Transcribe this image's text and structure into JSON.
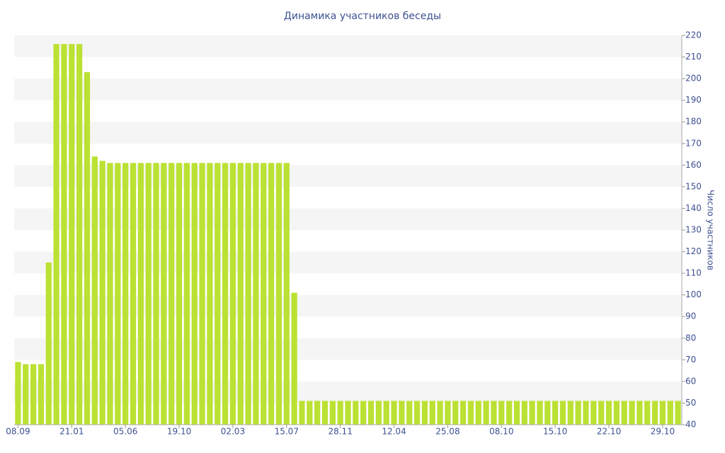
{
  "chart_data": {
    "type": "bar",
    "title": "Динамика участников беседы",
    "y_label": "Число участников",
    "categories": [
      "08.09",
      null,
      null,
      null,
      null,
      null,
      null,
      "21.01",
      null,
      null,
      null,
      null,
      null,
      null,
      "05.06",
      null,
      null,
      null,
      null,
      null,
      null,
      "19.10",
      null,
      null,
      null,
      null,
      null,
      null,
      "02.03",
      null,
      null,
      null,
      null,
      null,
      null,
      "15.07",
      null,
      null,
      null,
      null,
      null,
      null,
      "28.11",
      null,
      null,
      null,
      null,
      null,
      null,
      "12.04",
      null,
      null,
      null,
      null,
      null,
      null,
      "25.08",
      null,
      null,
      null,
      null,
      null,
      null,
      "08.10",
      null,
      null,
      null,
      null,
      null,
      null,
      "15.10",
      null,
      null,
      null,
      null,
      null,
      null,
      "22.10",
      null,
      null,
      null,
      null,
      null,
      null,
      "29.10",
      null,
      null
    ],
    "values": [
      69,
      68,
      68,
      68,
      115,
      216,
      216,
      216,
      216,
      203,
      164,
      162,
      161,
      161,
      161,
      161,
      161,
      161,
      161,
      161,
      161,
      161,
      161,
      161,
      161,
      161,
      161,
      161,
      161,
      161,
      161,
      161,
      161,
      161,
      161,
      161,
      101,
      51,
      51,
      51,
      51,
      51,
      51,
      51,
      51,
      51,
      51,
      51,
      51,
      51,
      51,
      51,
      51,
      51,
      51,
      51,
      51,
      51,
      51,
      51,
      51,
      51,
      51,
      51,
      51,
      51,
      51,
      51,
      51,
      51,
      51,
      51,
      51,
      51,
      51,
      51,
      51,
      51,
      51,
      51,
      51,
      51,
      51,
      51,
      51,
      51,
      51
    ],
    "color": "#bbe133",
    "ylim": [
      40,
      220
    ],
    "yticks": [
      40,
      50,
      60,
      70,
      80,
      90,
      100,
      110,
      120,
      130,
      140,
      150,
      160,
      170,
      180,
      190,
      200,
      210,
      220
    ],
    "grid": "bands",
    "y_axis_side": "right"
  }
}
